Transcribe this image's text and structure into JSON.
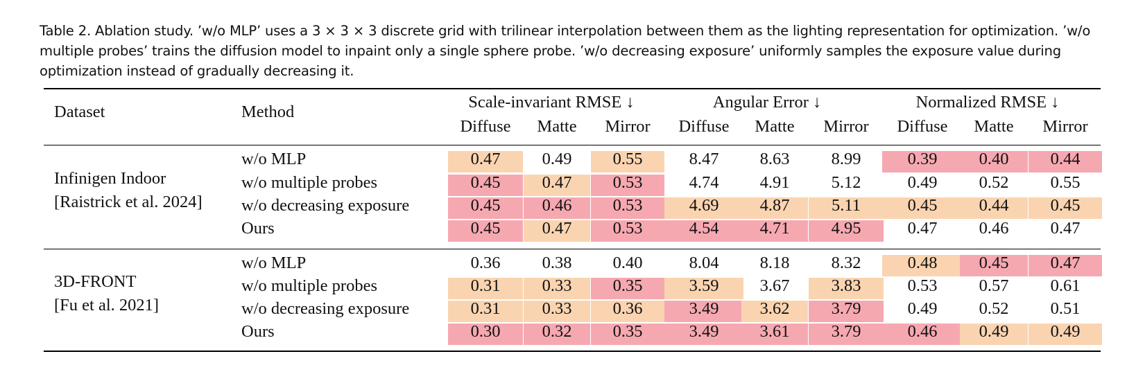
{
  "caption": "Table 2.  Ablation study. ’w/o MLP’ uses a 3 × 3 × 3 discrete grid with trilinear interpolation between them as the lighting representation for optimization. ’w/o multiple probes’ trains the diffusion model to inpaint only a single sphere probe. ’w/o decreasing exposure’ uniformly samples the exposure value during optimization instead of gradually decreasing it.",
  "header": {
    "dataset": "Dataset",
    "method": "Method",
    "groups": [
      "Scale-invariant RMSE ↓",
      "Angular Error ↓",
      "Normalized RMSE ↓"
    ],
    "subcols": [
      "Diffuse",
      "Matte",
      "Mirror",
      "Diffuse",
      "Matte",
      "Mirror",
      "Diffuse",
      "Matte",
      "Mirror"
    ]
  },
  "colors": {
    "best": "#f6a8b1",
    "second": "#fad4b0"
  },
  "sections": [
    {
      "dataset_lines": [
        "Infinigen Indoor",
        "[Raistrick et al. 2024]"
      ],
      "rows": [
        {
          "method": "w/o MLP",
          "values": [
            "0.47",
            "0.49",
            "0.55",
            "8.47",
            "8.63",
            "8.99",
            "0.39",
            "0.40",
            "0.44"
          ],
          "highlight": [
            "o",
            "",
            "o",
            "",
            "",
            "",
            "r",
            "r",
            "r"
          ]
        },
        {
          "method": "w/o multiple probes",
          "values": [
            "0.45",
            "0.47",
            "0.53",
            "4.74",
            "4.91",
            "5.12",
            "0.49",
            "0.52",
            "0.55"
          ],
          "highlight": [
            "r",
            "o",
            "r",
            "",
            "",
            "",
            "",
            "",
            ""
          ]
        },
        {
          "method": "w/o decreasing exposure",
          "values": [
            "0.45",
            "0.46",
            "0.53",
            "4.69",
            "4.87",
            "5.11",
            "0.45",
            "0.44",
            "0.45"
          ],
          "highlight": [
            "r",
            "r",
            "r",
            "o",
            "o",
            "o",
            "o",
            "o",
            "o"
          ]
        },
        {
          "method": "Ours",
          "values": [
            "0.45",
            "0.47",
            "0.53",
            "4.54",
            "4.71",
            "4.95",
            "0.47",
            "0.46",
            "0.47"
          ],
          "highlight": [
            "r",
            "o",
            "r",
            "r",
            "r",
            "r",
            "",
            "",
            ""
          ]
        }
      ]
    },
    {
      "dataset_lines": [
        "3D-FRONT",
        "[Fu et al. 2021]"
      ],
      "rows": [
        {
          "method": "w/o MLP",
          "values": [
            "0.36",
            "0.38",
            "0.40",
            "8.04",
            "8.18",
            "8.32",
            "0.48",
            "0.45",
            "0.47"
          ],
          "highlight": [
            "",
            "",
            "",
            "",
            "",
            "",
            "o",
            "r",
            "r"
          ]
        },
        {
          "method": "w/o multiple probes",
          "values": [
            "0.31",
            "0.33",
            "0.35",
            "3.59",
            "3.67",
            "3.83",
            "0.53",
            "0.57",
            "0.61"
          ],
          "highlight": [
            "o",
            "o",
            "r",
            "o",
            "",
            "o",
            "",
            "",
            ""
          ]
        },
        {
          "method": "w/o decreasing exposure",
          "values": [
            "0.31",
            "0.33",
            "0.36",
            "3.49",
            "3.62",
            "3.79",
            "0.49",
            "0.52",
            "0.51"
          ],
          "highlight": [
            "o",
            "o",
            "o",
            "r",
            "o",
            "r",
            "",
            "",
            ""
          ]
        },
        {
          "method": "Ours",
          "values": [
            "0.30",
            "0.32",
            "0.35",
            "3.49",
            "3.61",
            "3.79",
            "0.46",
            "0.49",
            "0.49"
          ],
          "highlight": [
            "r",
            "r",
            "r",
            "r",
            "r",
            "r",
            "r",
            "o",
            "o"
          ]
        }
      ]
    }
  ]
}
